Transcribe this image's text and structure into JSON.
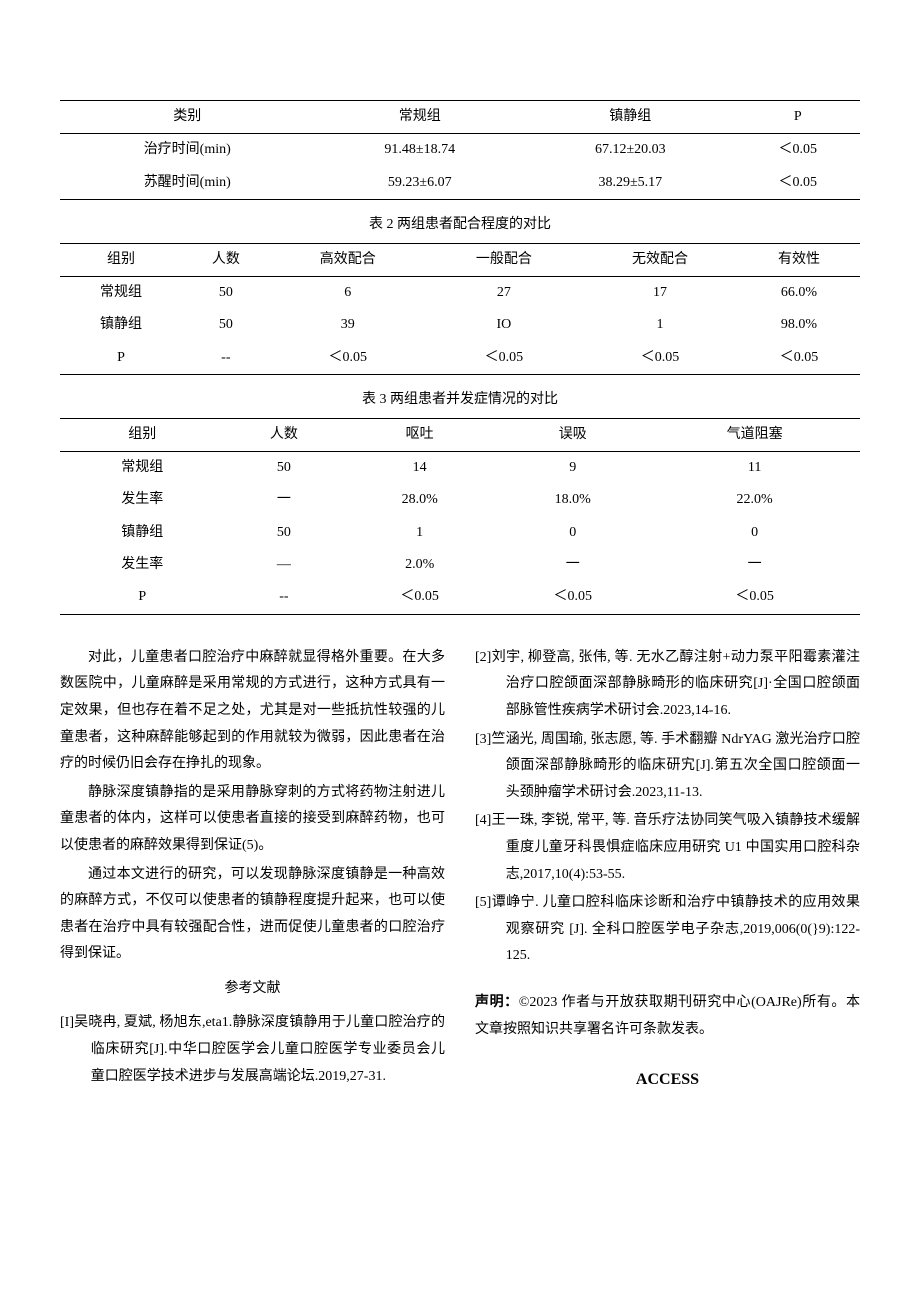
{
  "table1": {
    "columns": [
      "类别",
      "常规组",
      "镇静组",
      "P"
    ],
    "rows": [
      [
        "治疗时间(min)",
        "91.48±18.74",
        "67.12±20.03",
        "＜0.05"
      ],
      [
        "苏醒时间(min)",
        "59.23±6.07",
        "38.29±5.17",
        "＜0.05"
      ]
    ]
  },
  "table2": {
    "caption": "表 2 两组患者配合程度的对比",
    "columns": [
      "组别",
      "人数",
      "高效配合",
      "一般配合",
      "无效配合",
      "有效性"
    ],
    "rows": [
      [
        "常规组",
        "50",
        "6",
        "27",
        "17",
        "66.0%"
      ],
      [
        "镇静组",
        "50",
        "39",
        "IO",
        "1",
        "98.0%"
      ],
      [
        "P",
        "--",
        "＜0.05",
        "＜0.05",
        "＜0.05",
        "＜0.05"
      ]
    ]
  },
  "table3": {
    "caption": "表 3 两组患者并发症情况的对比",
    "columns": [
      "组别",
      "人数",
      "呕吐",
      "误吸",
      "气道阻塞"
    ],
    "rows": [
      [
        "常规组",
        "50",
        "14",
        "9",
        "11"
      ],
      [
        "发生率",
        "一",
        "28.0%",
        "18.0%",
        "22.0%"
      ],
      [
        "镇静组",
        "50",
        "1",
        "0",
        "0"
      ],
      [
        "发生率",
        "—",
        "2.0%",
        "一",
        "一"
      ],
      [
        "P",
        "--",
        "＜0.05",
        "＜0.05",
        "＜0.05"
      ]
    ]
  },
  "body": {
    "p1": "对此，儿童患者口腔治疗中麻醉就显得格外重要。在大多数医院中，儿童麻醉是采用常规的方式进行，这种方式具有一定效果，但也存在着不足之处，尤其是对一些抵抗性较强的儿童患者，这种麻醉能够起到的作用就较为微弱，因此患者在治疗的时候仍旧会存在挣扎的现象。",
    "p2": "静脉深度镇静指的是采用静脉穿刺的方式将药物注射进儿童患者的体内，这样可以使患者直接的接受到麻醉药物，也可以使患者的麻醉效果得到保证(5)。",
    "p3": "通过本文进行的研究，可以发现静脉深度镇静是一种高效的麻醉方式，不仅可以使患者的镇静程度提升起来，也可以使患者在治疗中具有较强配合性，进而促使儿童患者的口腔治疗得到保证。"
  },
  "refs": {
    "heading": "参考文献",
    "items": [
      "[I]吴晓冉, 夏斌, 杨旭东,eta1.静脉深度镇静用于儿童口腔治疗的临床研究[J].中华口腔医学会儿童口腔医学专业委员会儿童口腔医学技术进步与发展高端论坛.2019,27-31.",
      "[2]刘宇, 柳登高, 张伟, 等. 无水乙醇注射+动力泵平阳霉素灌注治疗口腔颌面深部静脉畸形的临床研究[J]·全国口腔颌面部脉管性疾病学术研讨会.2023,14-16.",
      "[3]竺涵光, 周国瑜, 张志愿, 等. 手术翻瓣 NdrYAG 激光治疗口腔颌面深部静脉畸形的临床研宄[J].第五次全国口腔颌面一头颈肿瘤学术研讨会.2023,11-13.",
      "[4]王一珠, 李锐, 常平, 等. 音乐疗法协同笑气吸入镇静技术缓解重度儿童牙科畏惧症临床应用研究 U1 中国实用口腔科杂志,2017,10(4):53-55.",
      "[5]谭峥宁. 儿童口腔科临床诊断和治疗中镇静技术的应用效果观察研究 [J]. 全科口腔医学电子杂志,2019,006(0(}9):122-125."
    ]
  },
  "declaration": {
    "label": "声明：",
    "text": "©2023 作者与开放获取期刊研究中心(OAJRe)所有。本文章按照知识共享署名许可条款发表。"
  },
  "access": "ACCESS"
}
